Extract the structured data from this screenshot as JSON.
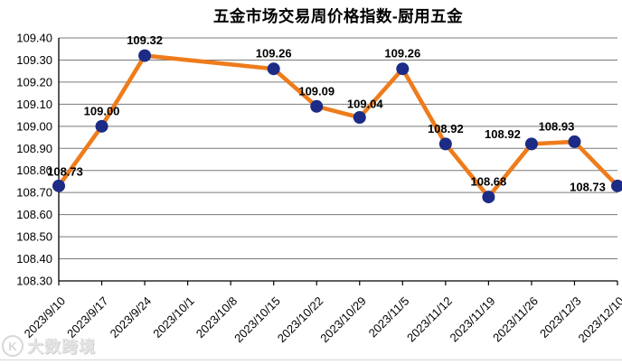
{
  "watermark": {
    "text": "大数跨境",
    "logo_glyph": "K"
  },
  "chart_data": {
    "type": "line",
    "title": "五金市场交易周价格指数-厨用五金",
    "categories": [
      "2023/9/10",
      "2023/9/17",
      "2023/9/24",
      "2023/10/1",
      "2023/10/8",
      "2023/10/15",
      "2023/10/22",
      "2023/10/29",
      "2023/11/5",
      "2023/11/12",
      "2023/11/19",
      "2023/11/26",
      "2023/12/3",
      "2023/12/10"
    ],
    "series": [
      {
        "name": "厨用五金",
        "values": [
          108.73,
          109.0,
          109.32,
          null,
          null,
          109.26,
          109.09,
          109.04,
          109.26,
          108.92,
          108.68,
          108.92,
          108.93,
          108.73
        ],
        "data_labels": [
          "108.73",
          "109.00",
          "109.32",
          "",
          "",
          "109.26",
          "109.09",
          "109.04",
          "109.26",
          "108.92",
          "108.68",
          "108.92",
          "108.93",
          "108.73"
        ]
      }
    ],
    "xlabel": "",
    "ylabel": "",
    "ylim": [
      108.3,
      109.4
    ],
    "yticks": [
      "109.40",
      "109.30",
      "109.20",
      "109.10",
      "109.00",
      "108.90",
      "108.80",
      "108.70",
      "108.60",
      "108.50",
      "108.40",
      "108.30"
    ],
    "grid": true,
    "legend": "none",
    "colors": {
      "line": "#EE7C1B",
      "marker": "#1C2B85",
      "grid": "#7a7a7a",
      "axis": "#000000",
      "text": "#000000"
    }
  }
}
